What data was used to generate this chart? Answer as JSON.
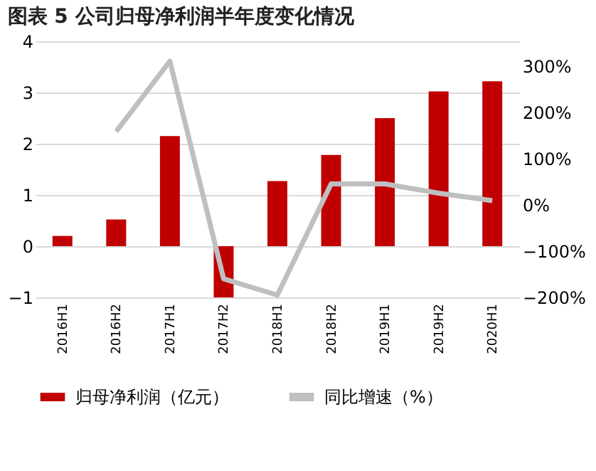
{
  "chart_data": {
    "type": "bar",
    "title": "图表 5 公司归母净利润半年度变化情况",
    "categories": [
      "2016H1",
      "2016H2",
      "2017H1",
      "2017H2",
      "2018H1",
      "2018H2",
      "2019H1",
      "2019H2",
      "2020H1"
    ],
    "series": [
      {
        "name": "归母净利润（亿元）",
        "color": "#c00000",
        "values": [
          0.2,
          0.52,
          2.15,
          -1.0,
          1.27,
          1.78,
          2.5,
          3.02,
          3.22
        ]
      },
      {
        "name": "同比增速（%）",
        "type": "line",
        "axis": "y2",
        "color": "#bfbfbf",
        "values": [
          null,
          158,
          310,
          -160,
          -195,
          45,
          45,
          25,
          9
        ]
      }
    ],
    "ylim": [
      -1,
      4
    ],
    "yticks": [
      {
        "value": -1,
        "label": "−1"
      },
      0,
      1,
      2,
      3,
      4
    ],
    "y2lim": [
      -200,
      353
    ],
    "y2ticks": [
      {
        "value": -200,
        "label": "−200%"
      },
      {
        "value": -100,
        "label": "−100%"
      },
      {
        "value": 0,
        "label": "0%"
      },
      {
        "value": 100,
        "label": "100%"
      },
      {
        "value": 200,
        "label": "200%"
      },
      {
        "value": 300,
        "label": "300%"
      }
    ],
    "grid": "y",
    "legend": "bottom"
  }
}
